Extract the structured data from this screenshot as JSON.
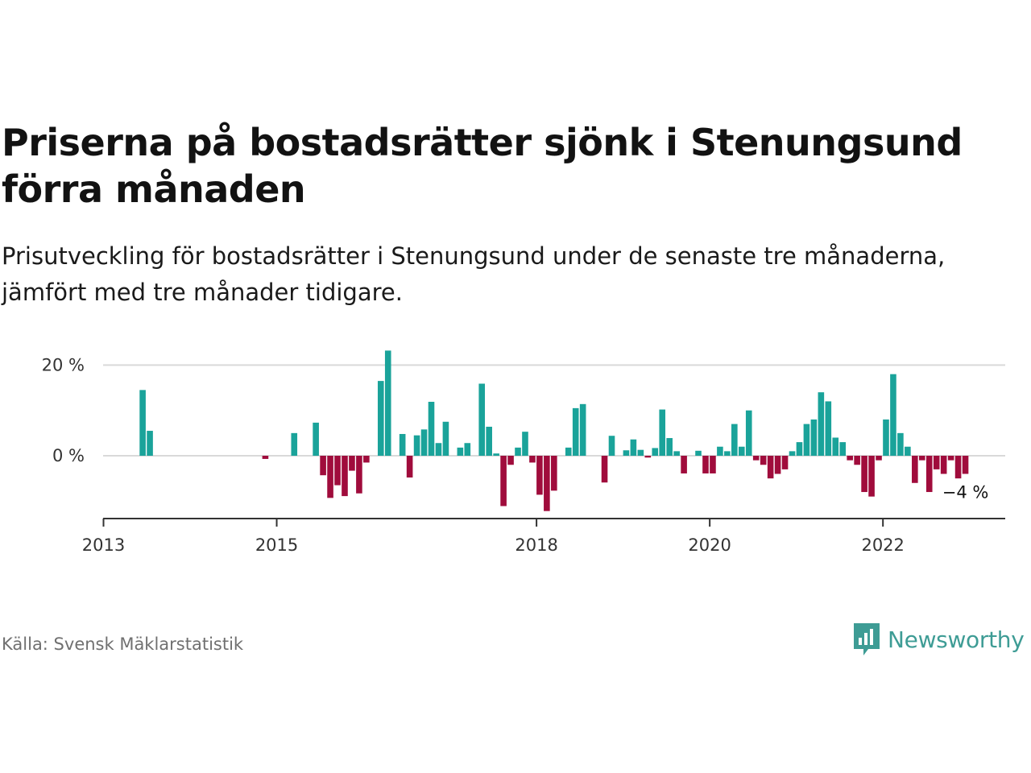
{
  "title": "Priserna på bostadsrätter sjönk i Stenungsund förra månaden",
  "subtitle": "Prisutveckling för bostadsrätter i Stenungsund under de senaste tre månaderna, jämfört med tre månader tidigare.",
  "source": "Källa: Svensk Mäklarstatistik",
  "brand": {
    "name": "Newsworthy",
    "icon": "newsworthy-logo-icon"
  },
  "colors": {
    "positive": "#1aa39a",
    "negative": "#a00c3c",
    "grid": "#d9d9d9",
    "axis": "#333333",
    "brand": "#3e9c95"
  },
  "chart_data": {
    "type": "bar",
    "ylim": [
      -14,
      24
    ],
    "y_ticks": [
      {
        "value": 0,
        "label": "0 %"
      },
      {
        "value": 20,
        "label": "20 %"
      }
    ],
    "x_ticks": [
      {
        "value": "2013-01",
        "label": "2013"
      },
      {
        "value": "2015-01",
        "label": "2015"
      },
      {
        "value": "2018-01",
        "label": "2018"
      },
      {
        "value": "2020-01",
        "label": "2020"
      },
      {
        "value": "2022-01",
        "label": "2022"
      }
    ],
    "x_range": [
      "2013-01",
      "2023-07"
    ],
    "annotation": {
      "x": "2022-12",
      "label": "−4 %"
    },
    "series": [
      {
        "values": [
          {
            "x": "2013-06",
            "y": 14.5
          },
          {
            "x": "2013-07",
            "y": 5.5
          },
          {
            "x": "2014-11",
            "y": -0.7
          },
          {
            "x": "2015-03",
            "y": 5.0
          },
          {
            "x": "2015-06",
            "y": 7.3
          },
          {
            "x": "2015-07",
            "y": -4.3
          },
          {
            "x": "2015-08",
            "y": -9.3
          },
          {
            "x": "2015-09",
            "y": -6.5
          },
          {
            "x": "2015-10",
            "y": -8.9
          },
          {
            "x": "2015-11",
            "y": -3.3
          },
          {
            "x": "2015-12",
            "y": -8.3
          },
          {
            "x": "2016-01",
            "y": -1.5
          },
          {
            "x": "2016-03",
            "y": 16.5
          },
          {
            "x": "2016-04",
            "y": 23.2
          },
          {
            "x": "2016-06",
            "y": 4.8
          },
          {
            "x": "2016-07",
            "y": -4.8
          },
          {
            "x": "2016-08",
            "y": 4.5
          },
          {
            "x": "2016-09",
            "y": 5.8
          },
          {
            "x": "2016-10",
            "y": 11.9
          },
          {
            "x": "2016-11",
            "y": 2.8
          },
          {
            "x": "2016-12",
            "y": 7.5
          },
          {
            "x": "2017-02",
            "y": 1.8
          },
          {
            "x": "2017-03",
            "y": 2.8
          },
          {
            "x": "2017-05",
            "y": 15.9
          },
          {
            "x": "2017-06",
            "y": 6.4
          },
          {
            "x": "2017-07",
            "y": 0.5
          },
          {
            "x": "2017-08",
            "y": -11.1
          },
          {
            "x": "2017-09",
            "y": -2.0
          },
          {
            "x": "2017-10",
            "y": 1.8
          },
          {
            "x": "2017-11",
            "y": 5.3
          },
          {
            "x": "2017-12",
            "y": -1.5
          },
          {
            "x": "2018-01",
            "y": -8.6
          },
          {
            "x": "2018-02",
            "y": -12.2
          },
          {
            "x": "2018-03",
            "y": -7.7
          },
          {
            "x": "2018-05",
            "y": 1.8
          },
          {
            "x": "2018-06",
            "y": 10.5
          },
          {
            "x": "2018-07",
            "y": 11.4
          },
          {
            "x": "2018-10",
            "y": -5.9
          },
          {
            "x": "2018-11",
            "y": 4.4
          },
          {
            "x": "2019-01",
            "y": 1.2
          },
          {
            "x": "2019-02",
            "y": 3.6
          },
          {
            "x": "2019-03",
            "y": 1.3
          },
          {
            "x": "2019-04",
            "y": -0.4
          },
          {
            "x": "2019-05",
            "y": 1.7
          },
          {
            "x": "2019-06",
            "y": 10.2
          },
          {
            "x": "2019-07",
            "y": 3.9
          },
          {
            "x": "2019-08",
            "y": 1.0
          },
          {
            "x": "2019-09",
            "y": -3.9
          },
          {
            "x": "2019-11",
            "y": 1.1
          },
          {
            "x": "2019-12",
            "y": -3.9
          },
          {
            "x": "2020-01",
            "y": -3.9
          },
          {
            "x": "2020-02",
            "y": 2.0
          },
          {
            "x": "2020-03",
            "y": 1.0
          },
          {
            "x": "2020-04",
            "y": 7.0
          },
          {
            "x": "2020-05",
            "y": 2.0
          },
          {
            "x": "2020-06",
            "y": 10.0
          },
          {
            "x": "2020-07",
            "y": -1.0
          },
          {
            "x": "2020-08",
            "y": -2.0
          },
          {
            "x": "2020-09",
            "y": -5.0
          },
          {
            "x": "2020-10",
            "y": -4.0
          },
          {
            "x": "2020-11",
            "y": -3.0
          },
          {
            "x": "2020-12",
            "y": 1.0
          },
          {
            "x": "2021-01",
            "y": 3.0
          },
          {
            "x": "2021-02",
            "y": 7.0
          },
          {
            "x": "2021-03",
            "y": 8.0
          },
          {
            "x": "2021-04",
            "y": 14.0
          },
          {
            "x": "2021-05",
            "y": 12.0
          },
          {
            "x": "2021-06",
            "y": 4.0
          },
          {
            "x": "2021-07",
            "y": 3.0
          },
          {
            "x": "2021-08",
            "y": -1.0
          },
          {
            "x": "2021-09",
            "y": -2.0
          },
          {
            "x": "2021-10",
            "y": -8.0
          },
          {
            "x": "2021-11",
            "y": -9.0
          },
          {
            "x": "2021-12",
            "y": -1.0
          },
          {
            "x": "2022-01",
            "y": 8.0
          },
          {
            "x": "2022-02",
            "y": 18.0
          },
          {
            "x": "2022-03",
            "y": 5.0
          },
          {
            "x": "2022-04",
            "y": 2.0
          },
          {
            "x": "2022-05",
            "y": -6.0
          },
          {
            "x": "2022-06",
            "y": -1.0
          },
          {
            "x": "2022-07",
            "y": -8.0
          },
          {
            "x": "2022-08",
            "y": -3.0
          },
          {
            "x": "2022-09",
            "y": -4.0
          },
          {
            "x": "2022-10",
            "y": -1.0
          },
          {
            "x": "2022-11",
            "y": -5.0
          },
          {
            "x": "2022-12",
            "y": -4.0
          }
        ]
      }
    ]
  }
}
